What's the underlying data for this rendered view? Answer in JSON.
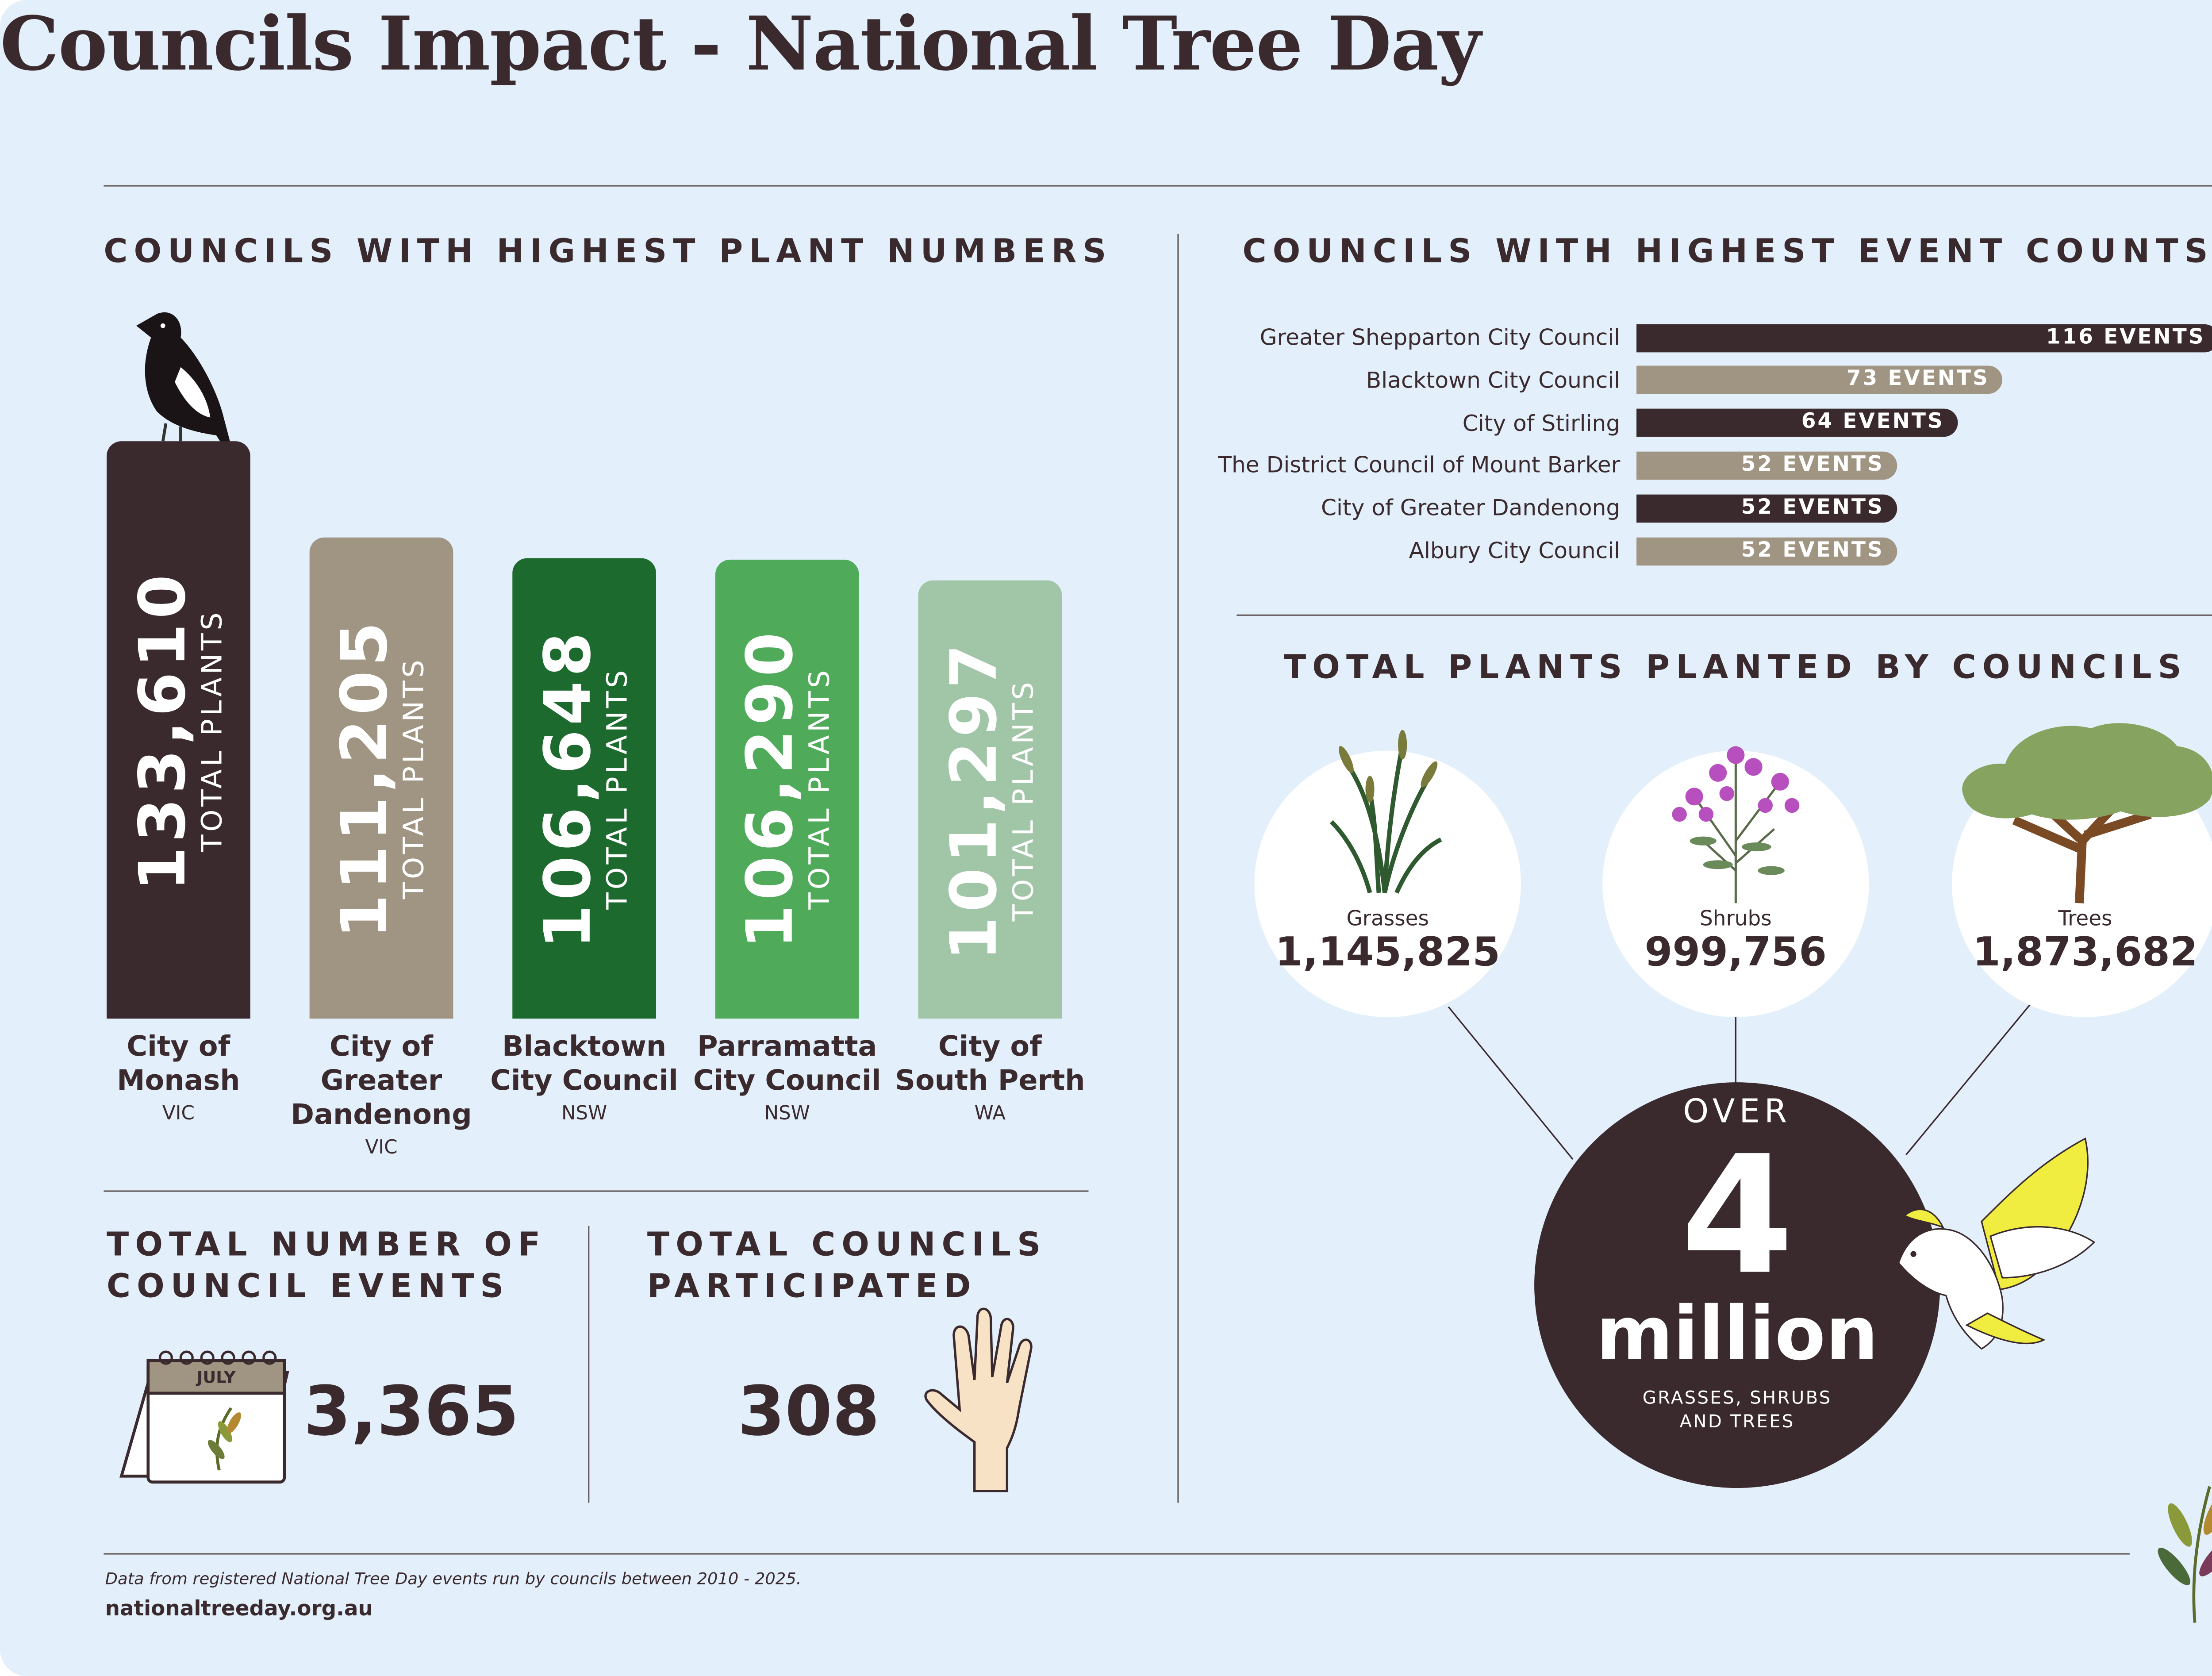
{
  "title": "Councils Impact - National Tree Day",
  "chart_data": [
    {
      "type": "bar",
      "title": "COUNCILS WITH HIGHEST PLANT NUMBERS",
      "categories": [
        "City of Monash",
        "City of Greater Dandenong",
        "Blacktown City Council",
        "Parramatta City Council",
        "City of South Perth"
      ],
      "states": [
        "VIC",
        "VIC",
        "NSW",
        "NSW",
        "WA"
      ],
      "values": [
        133610,
        111205,
        106648,
        106290,
        101297
      ],
      "value_labels": [
        "133,610",
        "111,205",
        "106,648",
        "106,290",
        "101,297"
      ],
      "value_caption": "TOTAL PLANTS",
      "colors": [
        "#3a2a2e",
        "#a09482",
        "#1d6a2e",
        "#4fab5a",
        "#a1c5a7"
      ]
    },
    {
      "type": "hbar",
      "title": "COUNCILS WITH HIGHEST EVENT COUNTS",
      "categories": [
        "Greater Shepparton City Council",
        "Blacktown City Council",
        "City of Stirling",
        "The District Council of Mount Barker",
        "City of Greater Dandenong",
        "Albury City Council"
      ],
      "values": [
        116,
        73,
        64,
        52,
        52,
        52
      ],
      "value_labels": [
        "116 EVENTS",
        "73 EVENTS",
        "64 EVENTS",
        "52 EVENTS",
        "52 EVENTS",
        "52 EVENTS"
      ],
      "colors": [
        "#3a2a2e",
        "#a09482",
        "#3a2a2e",
        "#a09482",
        "#3a2a2e",
        "#a09482"
      ]
    }
  ],
  "stats": [
    {
      "title": "TOTAL NUMBER OF COUNCIL EVENTS",
      "value": "3,365",
      "icon_label": "JULY"
    },
    {
      "title": "TOTAL COUNCILS PARTICIPATED",
      "value": "308"
    }
  ],
  "plants": {
    "title": "TOTAL PLANTS PLANTED BY COUNCILS",
    "items": [
      {
        "name": "Grasses",
        "value": "1,145,825"
      },
      {
        "name": "Shrubs",
        "value": "999,756"
      },
      {
        "name": "Trees",
        "value": "1,873,682"
      }
    ],
    "total_prefix": "OVER",
    "total_number": "4",
    "total_unit": "million",
    "total_caption": "GRASSES, SHRUBS AND TREES"
  },
  "footer": {
    "note": "Data from registered National Tree Day events run by councils between 2010 - 2025.",
    "url": "nationaltreeday.org.au"
  }
}
